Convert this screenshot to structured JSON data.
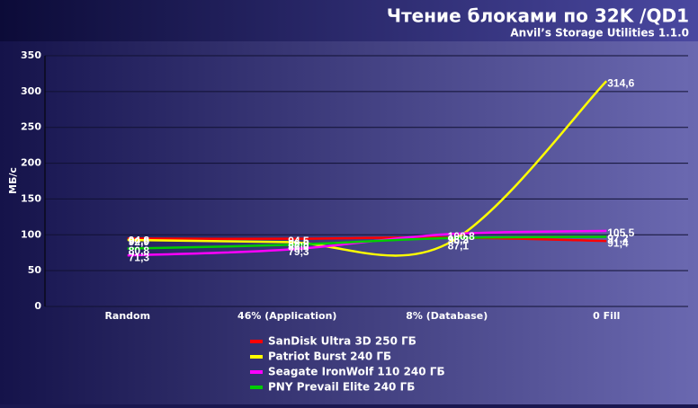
{
  "chart_data": {
    "type": "line",
    "title": "Чтение блоками по 32K /QD1",
    "subtitle": "Anvil’s Storage Utilities 1.1.0",
    "y_label": "МБ/с",
    "categories": [
      "Random",
      "46% (Application)",
      "8% (Database)",
      "0 Fill"
    ],
    "series": [
      {
        "name": "SanDisk Ultra 3D 250 ГБ",
        "color": "#ff0000",
        "values": [
          94.8,
          94.5,
          96.2,
          91.4
        ],
        "value_labels": [
          "94,8",
          "94,5",
          "96,2",
          "91,4"
        ]
      },
      {
        "name": "Patriot Burst 240 ГБ",
        "color": "#ffff00",
        "values": [
          92.9,
          89.9,
          87.1,
          314.6
        ],
        "value_labels": [
          "92,9",
          "89,9",
          "87,1",
          "314,6"
        ]
      },
      {
        "name": "Seagate IronWolf 110 240 ГБ",
        "color": "#ff00ff",
        "values": [
          71.3,
          79.3,
          100.8,
          105.5
        ],
        "value_labels": [
          "71,3",
          "79,3",
          "100,8",
          "105,5"
        ]
      },
      {
        "name": "PNY Prevail Elite 240 ГБ",
        "color": "#00cc00",
        "values": [
          80.8,
          86.0,
          95.3,
          97.2
        ],
        "value_labels": [
          "80,8",
          "86,0",
          "95,3",
          "97,2"
        ]
      }
    ],
    "ylim": [
      0,
      350
    ],
    "yticks": [
      0,
      50,
      100,
      150,
      200,
      250,
      300,
      350
    ],
    "grid": true
  }
}
